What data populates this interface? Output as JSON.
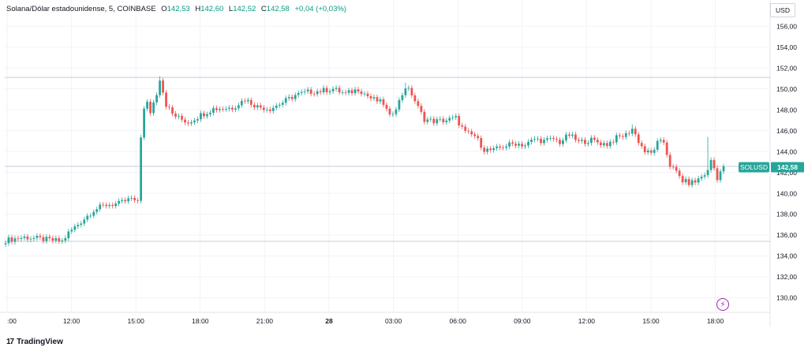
{
  "legend": {
    "symbol": "Solana/Dólar estadounidense, 5, COINBASE",
    "o_label": "O",
    "o_value": "142,53",
    "h_label": "H",
    "h_value": "142,60",
    "l_label": "L",
    "l_value": "142,52",
    "c_label": "C",
    "c_value": "142,58",
    "change": "+0,04 (+0,03%)"
  },
  "currency_button": "USD",
  "price_tag": {
    "symbol": "SOLUSD",
    "value": "142,58"
  },
  "brand": {
    "logo": "17",
    "name": "TradingView"
  },
  "icons": {
    "lightning": "lightning-icon"
  },
  "colors": {
    "up": "#26a69a",
    "down": "#ef5350",
    "accent": "#089981",
    "marker": "#9c27b0"
  },
  "chart_data": {
    "type": "candlestick",
    "interval": "5",
    "x_ticks": [
      ":00",
      "12:00",
      "15:00",
      "18:00",
      "21:00",
      "28",
      "03:00",
      "06:00",
      "09:00",
      "12:00",
      "15:00",
      "18:00"
    ],
    "y_ticks": [
      "130,00",
      "132,00",
      "134,00",
      "136,00",
      "138,00",
      "140,00",
      "142,00",
      "144,00",
      "146,00",
      "148,00",
      "150,00",
      "152,00",
      "154,00",
      "156,00"
    ],
    "ylim": [
      128.6,
      157.0
    ],
    "grid": true,
    "horizontal_levels": [
      151.1,
      142.58,
      135.4
    ],
    "last_price": 142.58,
    "close_path": [
      [
        0,
        135.5
      ],
      [
        6,
        135.8
      ],
      [
        12,
        135.6
      ],
      [
        18,
        135.4
      ],
      [
        20,
        136.2
      ],
      [
        24,
        137.3
      ],
      [
        28,
        138.4
      ],
      [
        32,
        138.9
      ],
      [
        36,
        139.0
      ],
      [
        40,
        139.5
      ],
      [
        41,
        139.1
      ],
      [
        42,
        139.3
      ],
      [
        43,
        145.5
      ],
      [
        44,
        148.0
      ],
      [
        45,
        148.6
      ],
      [
        46,
        147.8
      ],
      [
        47,
        148.7
      ],
      [
        48,
        149.6
      ],
      [
        49,
        151.0
      ],
      [
        51,
        148.5
      ],
      [
        53,
        147.6
      ],
      [
        55,
        147.2
      ],
      [
        58,
        146.8
      ],
      [
        62,
        147.5
      ],
      [
        66,
        148.1
      ],
      [
        72,
        148.2
      ],
      [
        76,
        149.0
      ],
      [
        80,
        148.3
      ],
      [
        84,
        148.1
      ],
      [
        88,
        148.7
      ],
      [
        92,
        149.4
      ],
      [
        96,
        149.7
      ],
      [
        100,
        149.8
      ],
      [
        104,
        150.0
      ],
      [
        108,
        149.5
      ],
      [
        112,
        150.0
      ],
      [
        116,
        149.1
      ],
      [
        120,
        148.6
      ],
      [
        122,
        147.3
      ],
      [
        125,
        148.8
      ],
      [
        127,
        150.2
      ],
      [
        129,
        149.5
      ],
      [
        131,
        148.2
      ],
      [
        133,
        147.1
      ],
      [
        136,
        146.9
      ],
      [
        140,
        147.0
      ],
      [
        143,
        147.2
      ],
      [
        146,
        145.8
      ],
      [
        149,
        145.5
      ],
      [
        152,
        144.2
      ],
      [
        155,
        144.1
      ],
      [
        158,
        144.5
      ],
      [
        162,
        144.8
      ],
      [
        165,
        144.6
      ],
      [
        168,
        145.2
      ],
      [
        171,
        145.0
      ],
      [
        174,
        145.2
      ],
      [
        176,
        144.9
      ],
      [
        179,
        145.6
      ],
      [
        182,
        144.9
      ],
      [
        186,
        145.1
      ],
      [
        189,
        144.8
      ],
      [
        191,
        144.7
      ],
      [
        194,
        145.3
      ],
      [
        197,
        145.6
      ],
      [
        199,
        146.2
      ],
      [
        201,
        145.0
      ],
      [
        203,
        144.0
      ],
      [
        205,
        143.8
      ],
      [
        207,
        144.8
      ],
      [
        209,
        144.9
      ],
      [
        211,
        142.7
      ],
      [
        213,
        142.0
      ],
      [
        215,
        141.2
      ],
      [
        217,
        141.0
      ],
      [
        219,
        141.1
      ],
      [
        221,
        141.6
      ],
      [
        223,
        142.1
      ],
      [
        224,
        143.2
      ],
      [
        225,
        142.4
      ],
      [
        226,
        141.5
      ],
      [
        227,
        142.1
      ],
      [
        228,
        142.58
      ]
    ],
    "wicks": [
      {
        "index": 49,
        "high": 151.2
      },
      {
        "index": 127,
        "high": 150.6
      },
      {
        "index": 199,
        "high": 146.6
      },
      {
        "index": 223,
        "high": 145.4
      },
      {
        "index": 217,
        "low": 140.6
      }
    ]
  }
}
